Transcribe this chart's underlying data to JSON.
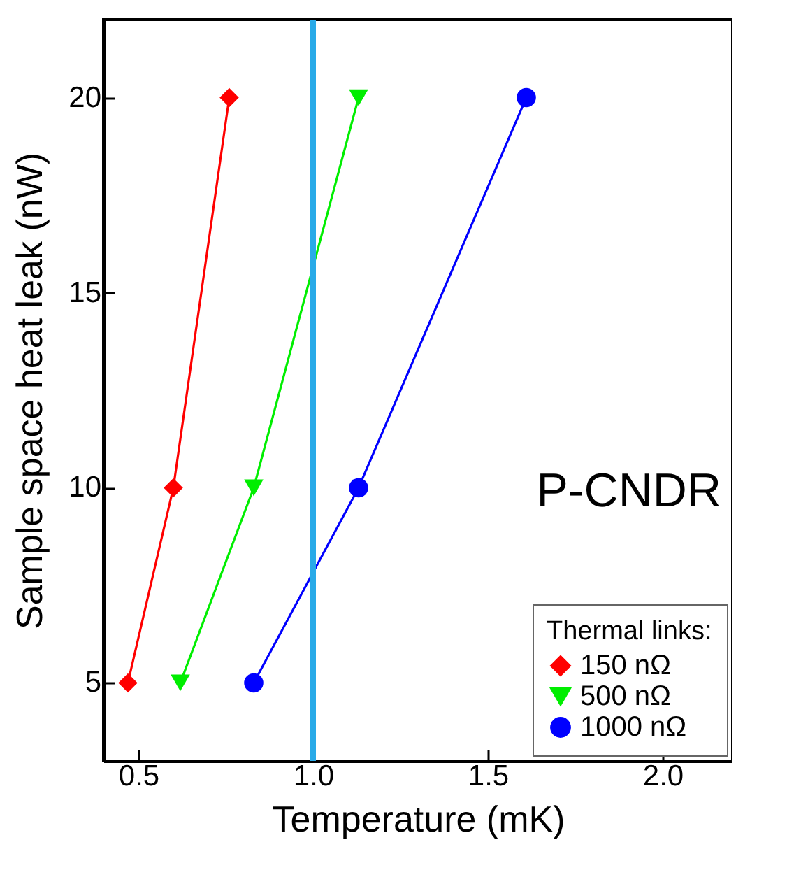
{
  "chart_data": {
    "type": "line",
    "xlabel": "Temperature (mK)",
    "ylabel": "Sample space heat leak (nW)",
    "legend_title": "Thermal links:",
    "legend": "bottom right",
    "grid": false,
    "xlim": [
      0.4,
      2.2
    ],
    "xticks": [
      {
        "value": 0.5,
        "label": "0.5"
      },
      {
        "value": 1.0,
        "label": "1.0"
      },
      {
        "value": 1.5,
        "label": "1.5"
      },
      {
        "value": 2.0,
        "label": "2.0"
      }
    ],
    "ylim": [
      3,
      22
    ],
    "yticks": [
      5,
      10,
      15,
      20
    ],
    "series": [
      {
        "name": "150 nΩ",
        "color": "#ff0000",
        "marker": "diamond",
        "x": [
          0.47,
          0.6,
          0.76
        ],
        "values": [
          5,
          10,
          20
        ]
      },
      {
        "name": "500 nΩ",
        "color": "#00ee00",
        "marker": "triangle",
        "x": [
          0.62,
          0.83,
          1.13
        ],
        "values": [
          5,
          10,
          20
        ]
      },
      {
        "name": "1000 nΩ",
        "color": "#0000ff",
        "marker": "circle",
        "x": [
          0.83,
          1.13,
          1.61
        ],
        "values": [
          5,
          10,
          20
        ]
      }
    ],
    "ref_lines": [
      {
        "axis": "x",
        "value": 1.0,
        "color": "#29aae8"
      }
    ],
    "annotations": [
      "P-CNDR"
    ]
  }
}
